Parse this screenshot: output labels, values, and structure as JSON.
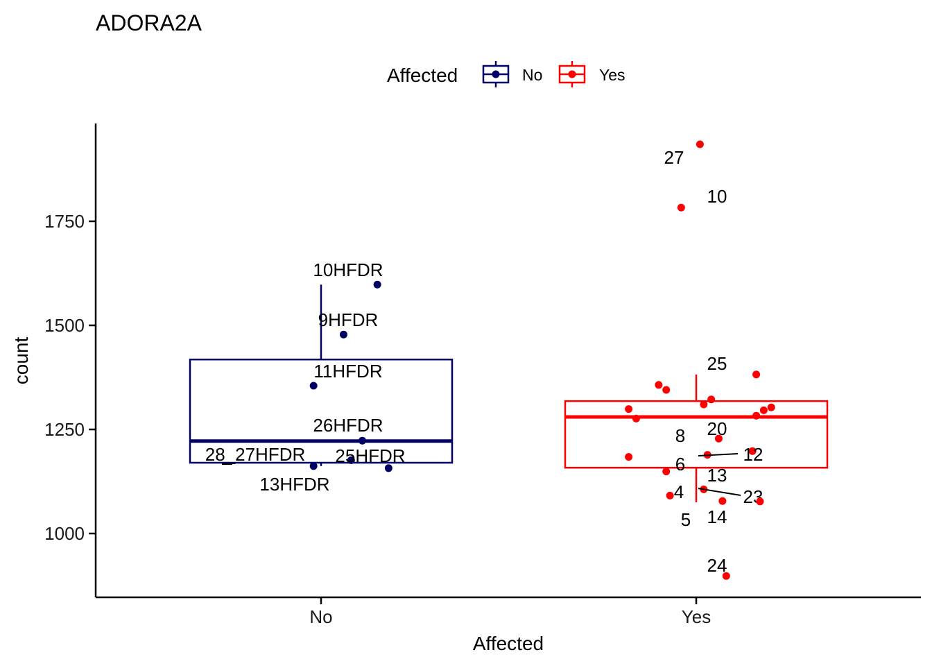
{
  "chart_data": {
    "type": "box",
    "title": "ADORA2A",
    "xlabel": "Affected",
    "ylabel": "count",
    "categories": [
      "No",
      "Yes"
    ],
    "yticks": [
      "1000",
      "1250",
      "1500",
      "1750"
    ],
    "ylim": [
      850,
      1990
    ],
    "legend": {
      "title": "Affected",
      "position": "top",
      "entries": [
        "No",
        "Yes"
      ]
    },
    "colors": {
      "No": "#000066",
      "Yes": "#ff0000"
    },
    "boxes": [
      {
        "group": "No",
        "whisker_low": 1162,
        "q1": 1170,
        "median": 1222,
        "q3": 1418,
        "whisker_high": 1598
      },
      {
        "group": "Yes",
        "whisker_low": 1075,
        "q1": 1158,
        "median": 1280,
        "q3": 1318,
        "whisker_high": 1382
      }
    ],
    "points": [
      {
        "group": "No",
        "jitter": 0.15,
        "y": 1598,
        "label": "10HFDR"
      },
      {
        "group": "No",
        "jitter": 0.06,
        "y": 1478,
        "label": "9HFDR"
      },
      {
        "group": "No",
        "jitter": -0.02,
        "y": 1355,
        "label": "11HFDR"
      },
      {
        "group": "No",
        "jitter": 0.11,
        "y": 1223,
        "label": "26HFDR"
      },
      {
        "group": "No",
        "jitter": 0.08,
        "y": 1176,
        "label": "25HFDR"
      },
      {
        "group": "No",
        "jitter": -0.02,
        "y": 1162,
        "label": "28_27HFDR"
      },
      {
        "group": "No",
        "jitter": 0.18,
        "y": 1157,
        "label": "13HFDR"
      },
      {
        "group": "Yes",
        "jitter": 0.01,
        "y": 1935,
        "label": "27"
      },
      {
        "group": "Yes",
        "jitter": -0.04,
        "y": 1783,
        "label": "10"
      },
      {
        "group": "Yes",
        "jitter": 0.16,
        "y": 1382,
        "label": "25"
      },
      {
        "group": "Yes",
        "jitter": -0.1,
        "y": 1357,
        "label": ""
      },
      {
        "group": "Yes",
        "jitter": -0.08,
        "y": 1345,
        "label": ""
      },
      {
        "group": "Yes",
        "jitter": 0.04,
        "y": 1322,
        "label": ""
      },
      {
        "group": "Yes",
        "jitter": 0.02,
        "y": 1310,
        "label": ""
      },
      {
        "group": "Yes",
        "jitter": 0.2,
        "y": 1303,
        "label": ""
      },
      {
        "group": "Yes",
        "jitter": -0.18,
        "y": 1299,
        "label": ""
      },
      {
        "group": "Yes",
        "jitter": 0.18,
        "y": 1296,
        "label": ""
      },
      {
        "group": "Yes",
        "jitter": 0.16,
        "y": 1283,
        "label": ""
      },
      {
        "group": "Yes",
        "jitter": -0.16,
        "y": 1276,
        "label": ""
      },
      {
        "group": "Yes",
        "jitter": 0.06,
        "y": 1228,
        "label": "20"
      },
      {
        "group": "Yes",
        "jitter": 0.15,
        "y": 1198,
        "label": "8"
      },
      {
        "group": "Yes",
        "jitter": 0.03,
        "y": 1189,
        "label": "12"
      },
      {
        "group": "Yes",
        "jitter": -0.18,
        "y": 1184,
        "label": "6"
      },
      {
        "group": "Yes",
        "jitter": -0.08,
        "y": 1149,
        "label": "13"
      },
      {
        "group": "Yes",
        "jitter": 0.02,
        "y": 1106,
        "label": "23"
      },
      {
        "group": "Yes",
        "jitter": -0.07,
        "y": 1091,
        "label": "4"
      },
      {
        "group": "Yes",
        "jitter": 0.07,
        "y": 1078,
        "label": "14"
      },
      {
        "group": "Yes",
        "jitter": 0.17,
        "y": 1077,
        "label": "5"
      },
      {
        "group": "Yes",
        "jitter": 0.08,
        "y": 898,
        "label": "24"
      }
    ]
  }
}
